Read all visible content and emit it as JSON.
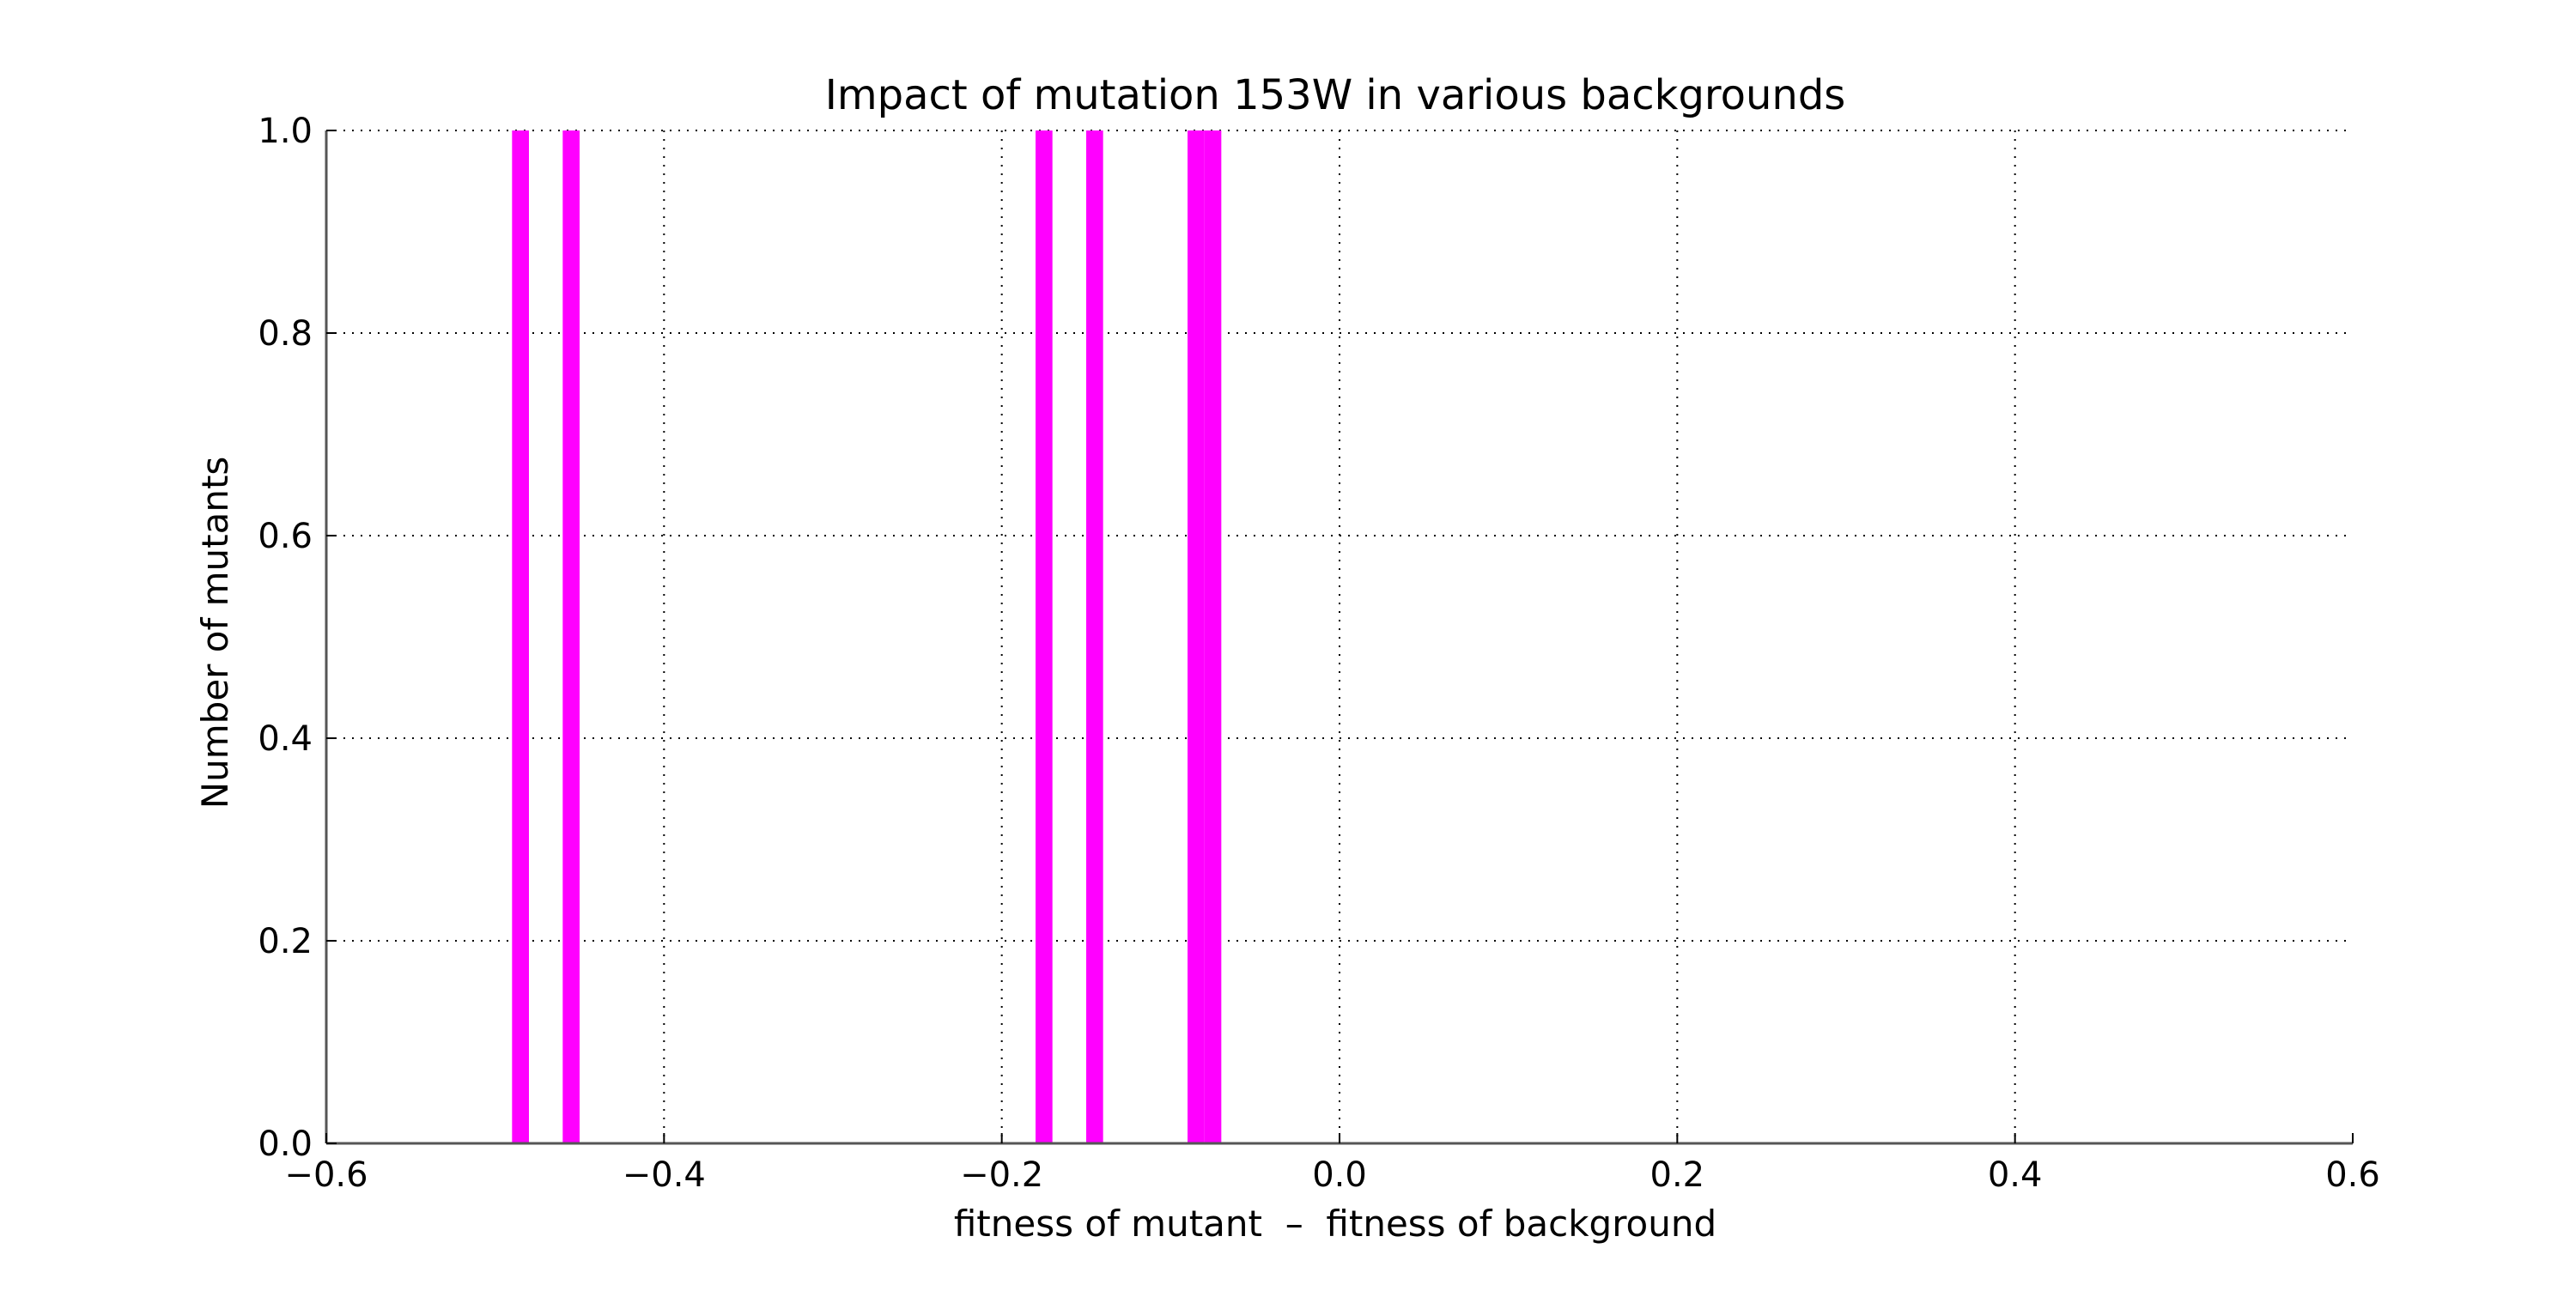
{
  "chart_data": {
    "type": "bar",
    "title": "Impact of mutation 153W in various backgrounds",
    "xlabel": "fitness of mutant  –  fitness of background",
    "ylabel": "Number of mutants",
    "xlim": [
      -0.6,
      0.6
    ],
    "ylim": [
      0.0,
      1.0
    ],
    "xticks": [
      -0.6,
      -0.4,
      -0.2,
      0.0,
      0.2,
      0.4,
      0.6
    ],
    "xtick_labels": [
      "−0.6",
      "−0.4",
      "−0.2",
      "0.0",
      "0.2",
      "0.4",
      "0.6"
    ],
    "yticks": [
      0.0,
      0.2,
      0.4,
      0.6,
      0.8,
      1.0
    ],
    "ytick_labels": [
      "0.0",
      "0.2",
      "0.4",
      "0.6",
      "0.8",
      "1.0"
    ],
    "grid": true,
    "bar_color": "#ff00ff",
    "bin_width": 0.01,
    "bars": [
      {
        "x": -0.485,
        "value": 1
      },
      {
        "x": -0.455,
        "value": 1
      },
      {
        "x": -0.175,
        "value": 1
      },
      {
        "x": -0.145,
        "value": 1
      },
      {
        "x": -0.085,
        "value": 1
      },
      {
        "x": -0.075,
        "value": 1
      }
    ]
  }
}
